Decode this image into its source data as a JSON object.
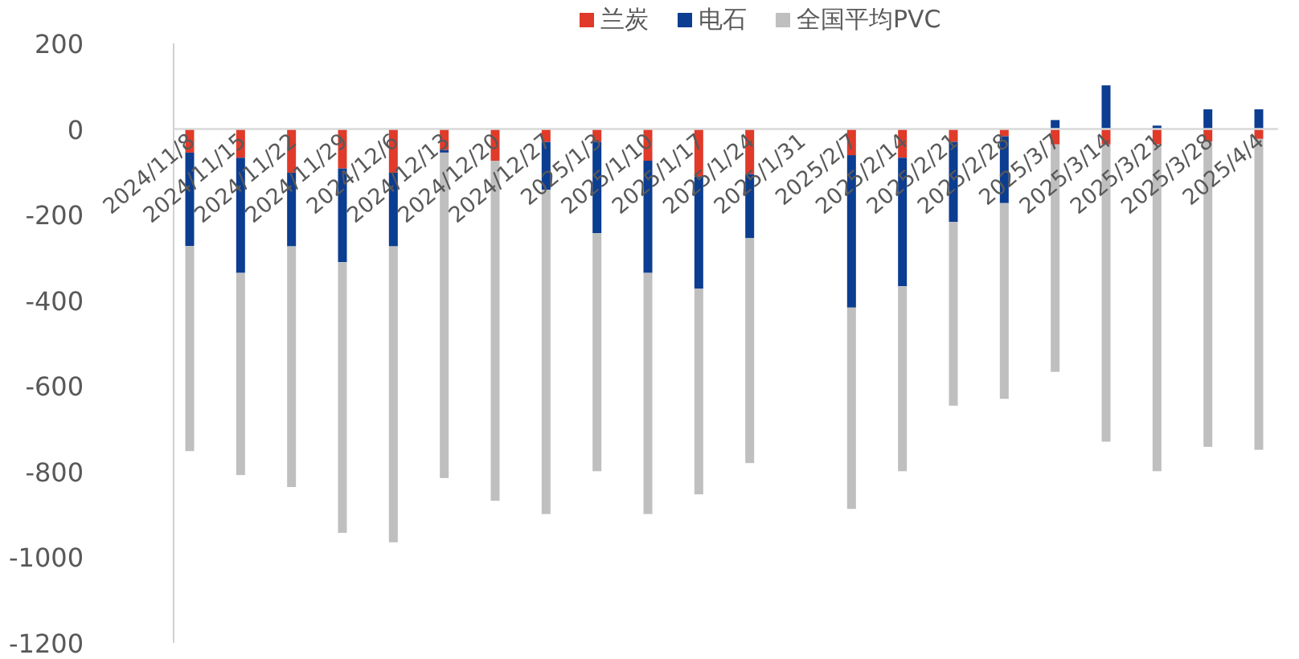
{
  "chart_data": {
    "type": "bar",
    "stacked": true,
    "legend": "top",
    "categories": [
      "2024/11/8",
      "2024/11/15",
      "2024/11/22",
      "2024/11/29",
      "2024/12/6",
      "2024/12/13",
      "2024/12/20",
      "2024/12/27",
      "2025/1/3",
      "2025/1/10",
      "2025/1/17",
      "2025/1/24",
      "2025/1/31",
      "2025/2/7",
      "2025/2/14",
      "2025/2/21",
      "2025/2/28",
      "2025/3/7",
      "2025/3/14",
      "2025/3/21",
      "2025/3/28",
      "2025/4/4"
    ],
    "series": [
      {
        "name": "兰炭",
        "color": "#e03a2a",
        "values": [
          -55,
          -67,
          -102,
          -92,
          -102,
          -49,
          -74,
          -30,
          -30,
          -74,
          -111,
          -105,
          null,
          -61,
          -67,
          -30,
          -17,
          -36,
          -36,
          -36,
          -30,
          -23
        ]
      },
      {
        "name": "电石",
        "color": "#0b3d91",
        "values": [
          -218,
          -269,
          -172,
          -219,
          -172,
          -6,
          0,
          -112,
          -213,
          -262,
          -262,
          -150,
          null,
          -356,
          -300,
          -187,
          -156,
          21,
          102,
          8,
          46,
          46
        ]
      },
      {
        "name": "全国平均PVC",
        "color": "#bfbfbf",
        "values": [
          -479,
          -472,
          -562,
          -632,
          -691,
          -760,
          -794,
          -757,
          -556,
          -563,
          -480,
          -525,
          null,
          -470,
          -432,
          -429,
          -457,
          -531,
          -694,
          -763,
          -712,
          -726
        ]
      }
    ],
    "ylim": [
      -1200,
      200
    ],
    "yticks": [
      -1200,
      -1000,
      -800,
      -600,
      -400,
      -200,
      0,
      200
    ]
  }
}
